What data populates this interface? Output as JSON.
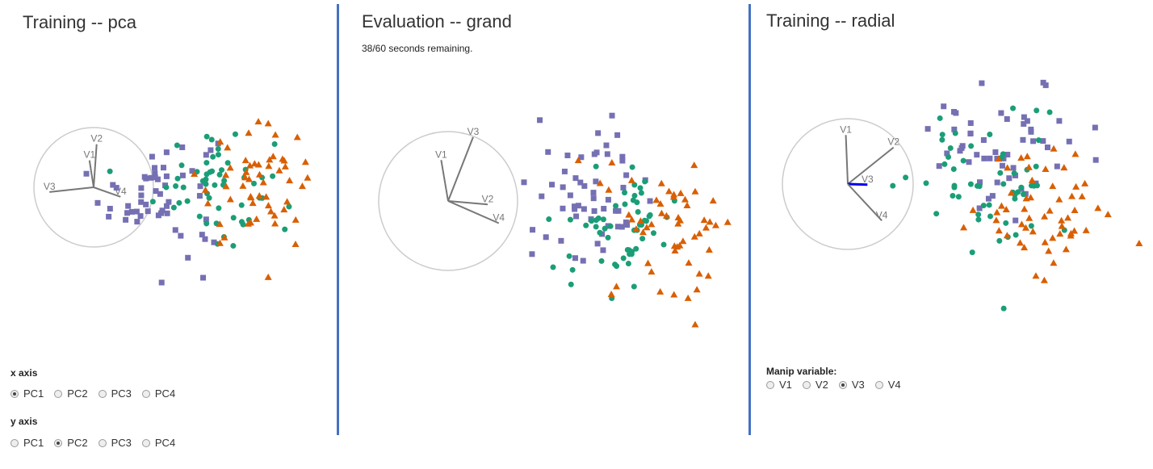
{
  "panels": [
    {
      "title": "Training -- pca"
    },
    {
      "title": "Evaluation -- grand",
      "timer": "38/60 seconds remaining."
    },
    {
      "title": "Training -- radial"
    }
  ],
  "controls": {
    "x_axis": {
      "label": "x axis",
      "options": [
        "PC1",
        "PC2",
        "PC3",
        "PC4"
      ],
      "selected": "PC1"
    },
    "y_axis": {
      "label": "y axis",
      "options": [
        "PC1",
        "PC2",
        "PC3",
        "PC4"
      ],
      "selected": "PC2"
    },
    "manip": {
      "label": "Manip variable:",
      "options": [
        "V1",
        "V2",
        "V3",
        "V4"
      ],
      "selected": "V3"
    }
  },
  "colors": {
    "purple": "#7570b3",
    "green": "#1b9e77",
    "orange": "#d95f02",
    "divider": "#4472c4",
    "axis": "#777777",
    "circle": "#cccccc",
    "manip": "#0000ee"
  },
  "chart_data": [
    {
      "type": "scatter",
      "title": "Training -- pca",
      "axes": [
        {
          "name": "V1",
          "x": -0.07,
          "y": 0.45
        },
        {
          "name": "V2",
          "x": 0.05,
          "y": 0.72
        },
        {
          "name": "V3",
          "x": -0.74,
          "y": -0.08
        },
        {
          "name": "V4",
          "x": 0.45,
          "y": -0.16
        }
      ],
      "series": [
        {
          "shape": "square",
          "color": "purple",
          "center": [
            -0.55,
            -0.05
          ],
          "spread": [
            0.28,
            0.3
          ],
          "count": 55
        },
        {
          "shape": "circle",
          "color": "green",
          "center": [
            -0.05,
            0.05
          ],
          "spread": [
            0.28,
            0.28
          ],
          "count": 55
        },
        {
          "shape": "triangle",
          "color": "orange",
          "center": [
            0.35,
            0.0
          ],
          "spread": [
            0.28,
            0.28
          ],
          "count": 55
        }
      ]
    },
    {
      "type": "scatter",
      "title": "Evaluation -- grand",
      "axes": [
        {
          "name": "V1",
          "x": -0.1,
          "y": 0.59
        },
        {
          "name": "V2",
          "x": 0.57,
          "y": -0.05
        },
        {
          "name": "V3",
          "x": 0.36,
          "y": 0.92
        },
        {
          "name": "V4",
          "x": 0.73,
          "y": -0.32
        }
      ],
      "series": [
        {
          "shape": "square",
          "color": "purple",
          "center": [
            -0.35,
            0.15
          ],
          "spread": [
            0.25,
            0.28
          ],
          "count": 55
        },
        {
          "shape": "circle",
          "color": "green",
          "center": [
            -0.15,
            -0.15
          ],
          "spread": [
            0.25,
            0.25
          ],
          "count": 55
        },
        {
          "shape": "triangle",
          "color": "orange",
          "center": [
            0.3,
            -0.15
          ],
          "spread": [
            0.3,
            0.32
          ],
          "count": 55
        }
      ]
    },
    {
      "type": "scatter",
      "title": "Training -- radial",
      "manip_variable": "V3",
      "axes": [
        {
          "name": "V1",
          "x": -0.03,
          "y": 0.75
        },
        {
          "name": "V2",
          "x": 0.7,
          "y": 0.56
        },
        {
          "name": "V3",
          "x": 0.3,
          "y": -0.01
        },
        {
          "name": "V4",
          "x": 0.52,
          "y": -0.56
        }
      ],
      "series": [
        {
          "shape": "square",
          "color": "purple",
          "center": [
            -0.05,
            0.35
          ],
          "spread": [
            0.32,
            0.25
          ],
          "count": 55
        },
        {
          "shape": "circle",
          "color": "green",
          "center": [
            -0.15,
            0.0
          ],
          "spread": [
            0.3,
            0.3
          ],
          "count": 55
        },
        {
          "shape": "triangle",
          "color": "orange",
          "center": [
            0.25,
            -0.2
          ],
          "spread": [
            0.3,
            0.25
          ],
          "count": 55
        }
      ]
    }
  ]
}
